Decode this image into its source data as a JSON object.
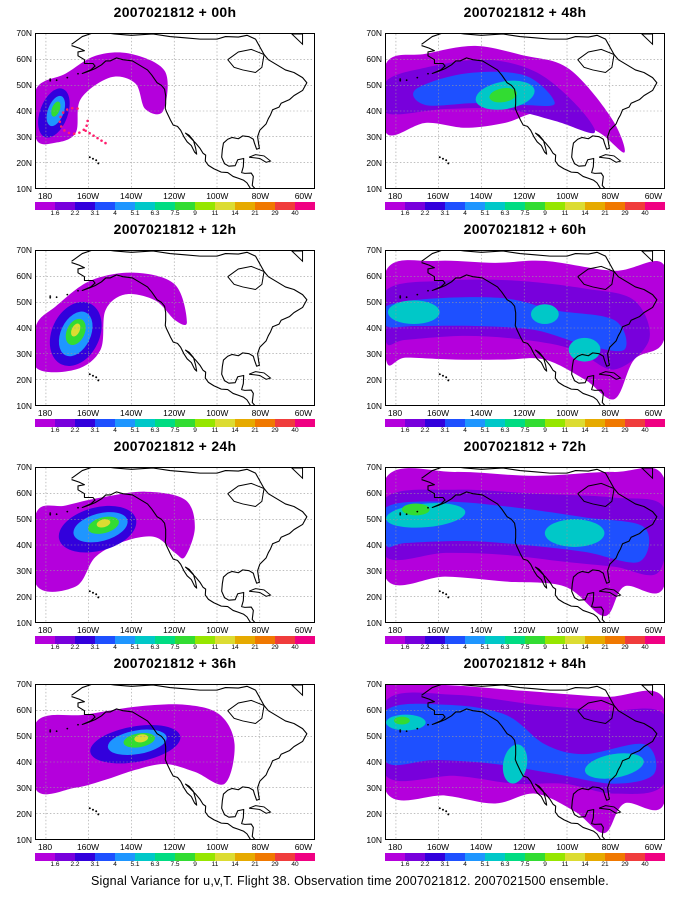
{
  "panels": [
    {
      "title": "2007021812 + 00h",
      "lead": "00h"
    },
    {
      "title": "2007021812 + 48h",
      "lead": "48h"
    },
    {
      "title": "2007021812 + 12h",
      "lead": "12h"
    },
    {
      "title": "2007021812 + 60h",
      "lead": "60h"
    },
    {
      "title": "2007021812 + 24h",
      "lead": "24h"
    },
    {
      "title": "2007021812 + 72h",
      "lead": "72h"
    },
    {
      "title": "2007021812 + 36h",
      "lead": "36h"
    },
    {
      "title": "2007021812 + 84h",
      "lead": "84h"
    }
  ],
  "axes": {
    "lat_labels": [
      "70N",
      "60N",
      "50N",
      "40N",
      "30N",
      "20N",
      "10N"
    ],
    "lon_labels": [
      "180",
      "160W",
      "140W",
      "120W",
      "100W",
      "80W",
      "60W"
    ],
    "lat_range": [
      10,
      70
    ],
    "lon_range": [
      "170E",
      "60W"
    ],
    "grid": "dotted"
  },
  "colorbar": {
    "labels": [
      "1.6",
      "2.2",
      "3.1",
      "4",
      "5.1",
      "6.3",
      "7.5",
      "9",
      "11",
      "14",
      "21",
      "29",
      "40"
    ],
    "colors": [
      "#b400dc",
      "#7800dc",
      "#3200dc",
      "#1e50ff",
      "#1e96ff",
      "#00c8c8",
      "#00dc82",
      "#32dc32",
      "#96e600",
      "#dcdc32",
      "#e6aa00",
      "#f07800",
      "#f03c3c",
      "#f00082"
    ]
  },
  "footer": "Signal Variance for u,v,T. Flight 38. Observation time 2007021812. 2007021500 ensemble."
}
